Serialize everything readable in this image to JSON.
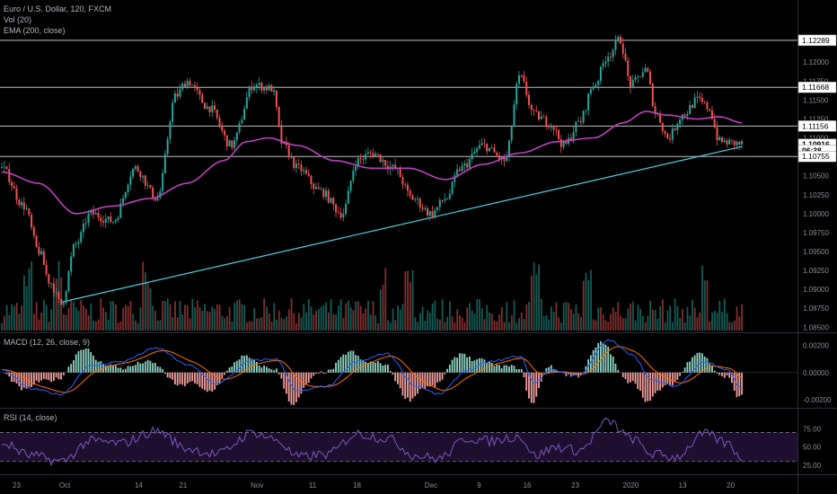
{
  "header": {
    "symbol": "Euro / U.S. Dollar, 120, FXCM",
    "vol": "Vol (20)",
    "ema": "EMA (200, close)",
    "macd": "MACD (12, 26, close, 9)",
    "rsi": "RSI (14, close)"
  },
  "colors": {
    "background": "#000000",
    "up": "#26a69a",
    "down": "#ef5350",
    "ema": "#c040c0",
    "trendline": "#4dd0e1",
    "hline": "#bfbfbf",
    "macd_line": "#2962ff",
    "signal_line": "#ff6d00",
    "rsi_line": "#7e57c2",
    "rsi_band": "#1e0f2e"
  },
  "chart_data": [
    {
      "type": "candlestick",
      "pane": "price",
      "y_ticks": [
        "1.12250",
        "1.12000",
        "1.11750",
        "1.11500",
        "1.11250",
        "1.11000",
        "1.10750",
        "1.10500",
        "1.10250",
        "1.10000",
        "1.09750",
        "1.09500",
        "1.09250",
        "1.09000",
        "1.08750",
        "1.08500"
      ],
      "ylim": [
        1.0848,
        1.1275
      ],
      "x_tick_labels": [
        "23",
        "Oct",
        "14",
        "21",
        "Nov",
        "11",
        "18",
        "Dec",
        "9",
        "16",
        "23",
        "2020",
        "13",
        "20"
      ],
      "price_labels": [
        {
          "text": "1.12289",
          "value": 1.12289,
          "highlight": false
        },
        {
          "text": "1.11668",
          "value": 1.11668,
          "highlight": false
        },
        {
          "text": "1.11156",
          "value": 1.11156,
          "highlight": false
        },
        {
          "text": "1.10916",
          "value": 1.10916,
          "highlight": true
        },
        {
          "text": "06:38",
          "value": 1.10835,
          "highlight": true
        },
        {
          "text": "1.10755",
          "value": 1.10755,
          "highlight": false
        }
      ],
      "horizontal_lines": [
        1.12289,
        1.11668,
        1.11156,
        1.10755
      ],
      "trendline": {
        "from": {
          "bar": 0.08,
          "price": 1.0883
        },
        "to": {
          "bar": 0.97,
          "price": 1.1085
        }
      },
      "close_anchors": [
        [
          0.0,
          1.106
        ],
        [
          0.03,
          1.101
        ],
        [
          0.05,
          1.095
        ],
        [
          0.065,
          1.091
        ],
        [
          0.08,
          1.088
        ],
        [
          0.1,
          1.096
        ],
        [
          0.12,
          1.1
        ],
        [
          0.15,
          1.099
        ],
        [
          0.18,
          1.106
        ],
        [
          0.21,
          1.102
        ],
        [
          0.235,
          1.1155
        ],
        [
          0.25,
          1.1175
        ],
        [
          0.28,
          1.114
        ],
        [
          0.31,
          1.109
        ],
        [
          0.34,
          1.117
        ],
        [
          0.365,
          1.1165
        ],
        [
          0.38,
          1.109
        ],
        [
          0.4,
          1.106
        ],
        [
          0.43,
          1.103
        ],
        [
          0.46,
          1.1
        ],
        [
          0.48,
          1.107
        ],
        [
          0.5,
          1.108
        ],
        [
          0.53,
          1.106
        ],
        [
          0.555,
          1.102
        ],
        [
          0.58,
          1.1
        ],
        [
          0.6,
          1.102
        ],
        [
          0.62,
          1.106
        ],
        [
          0.65,
          1.109
        ],
        [
          0.68,
          1.107
        ],
        [
          0.7,
          1.118
        ],
        [
          0.72,
          1.113
        ],
        [
          0.74,
          1.112
        ],
        [
          0.76,
          1.109
        ],
        [
          0.78,
          1.112
        ],
        [
          0.8,
          1.117
        ],
        [
          0.82,
          1.121
        ],
        [
          0.835,
          1.123
        ],
        [
          0.85,
          1.117
        ],
        [
          0.87,
          1.119
        ],
        [
          0.885,
          1.113
        ],
        [
          0.9,
          1.11
        ],
        [
          0.92,
          1.113
        ],
        [
          0.94,
          1.115
        ],
        [
          0.955,
          1.114
        ],
        [
          0.97,
          1.1095
        ],
        [
          1.0,
          1.1092
        ]
      ],
      "ema_anchors": [
        [
          0.0,
          1.1055
        ],
        [
          0.05,
          1.104
        ],
        [
          0.1,
          1.1
        ],
        [
          0.15,
          1.101
        ],
        [
          0.2,
          1.102
        ],
        [
          0.25,
          1.104
        ],
        [
          0.3,
          1.107
        ],
        [
          0.33,
          1.1095
        ],
        [
          0.36,
          1.11
        ],
        [
          0.4,
          1.109
        ],
        [
          0.45,
          1.107
        ],
        [
          0.5,
          1.106
        ],
        [
          0.55,
          1.106
        ],
        [
          0.6,
          1.1045
        ],
        [
          0.65,
          1.1065
        ],
        [
          0.7,
          1.108
        ],
        [
          0.75,
          1.1095
        ],
        [
          0.8,
          1.11
        ],
        [
          0.84,
          1.112
        ],
        [
          0.87,
          1.1135
        ],
        [
          0.9,
          1.113
        ],
        [
          0.94,
          1.1125
        ],
        [
          0.97,
          1.1128
        ],
        [
          1.0,
          1.112
        ]
      ],
      "volume_spikes": [
        0.035,
        0.075,
        0.195,
        0.515,
        0.55,
        0.72,
        0.79,
        0.95
      ]
    },
    {
      "type": "histogram+line",
      "pane": "macd",
      "ylim": [
        -0.0024,
        0.0027
      ],
      "y_ticks": [
        "0.00200",
        "0.00000",
        "-0.00200"
      ],
      "macd_anchors": [
        [
          0.0,
          0.0002
        ],
        [
          0.04,
          -0.0012
        ],
        [
          0.08,
          -0.0016
        ],
        [
          0.12,
          0.0005
        ],
        [
          0.16,
          0.0008
        ],
        [
          0.21,
          0.0018
        ],
        [
          0.25,
          0.0006
        ],
        [
          0.29,
          -0.0008
        ],
        [
          0.34,
          0.0009
        ],
        [
          0.37,
          0.001
        ],
        [
          0.4,
          -0.0014
        ],
        [
          0.44,
          -0.001
        ],
        [
          0.48,
          0.0008
        ],
        [
          0.52,
          0.0014
        ],
        [
          0.56,
          -0.001
        ],
        [
          0.59,
          -0.0016
        ],
        [
          0.63,
          0.0002
        ],
        [
          0.66,
          0.0008
        ],
        [
          0.7,
          0.0012
        ],
        [
          0.72,
          -0.0008
        ],
        [
          0.74,
          0.0002
        ],
        [
          0.78,
          -0.0002
        ],
        [
          0.82,
          0.0024
        ],
        [
          0.85,
          0.0014
        ],
        [
          0.88,
          -0.0006
        ],
        [
          0.91,
          -0.001
        ],
        [
          0.95,
          0.0008
        ],
        [
          0.98,
          0.0002
        ],
        [
          1.0,
          -0.0012
        ]
      ]
    },
    {
      "type": "line",
      "pane": "rsi",
      "ylim": [
        15,
        100
      ],
      "y_ticks": [
        "75.00",
        "50.00",
        "25.00"
      ],
      "band": [
        30,
        70
      ],
      "rsi_anchors": [
        [
          0.0,
          55
        ],
        [
          0.04,
          38
        ],
        [
          0.08,
          30
        ],
        [
          0.12,
          58
        ],
        [
          0.16,
          55
        ],
        [
          0.21,
          72
        ],
        [
          0.25,
          48
        ],
        [
          0.29,
          40
        ],
        [
          0.34,
          70
        ],
        [
          0.37,
          60
        ],
        [
          0.4,
          36
        ],
        [
          0.44,
          40
        ],
        [
          0.48,
          68
        ],
        [
          0.52,
          62
        ],
        [
          0.56,
          38
        ],
        [
          0.59,
          34
        ],
        [
          0.63,
          62
        ],
        [
          0.66,
          58
        ],
        [
          0.7,
          65
        ],
        [
          0.72,
          38
        ],
        [
          0.75,
          50
        ],
        [
          0.78,
          45
        ],
        [
          0.82,
          85
        ],
        [
          0.85,
          62
        ],
        [
          0.88,
          40
        ],
        [
          0.91,
          36
        ],
        [
          0.95,
          68
        ],
        [
          0.98,
          55
        ],
        [
          1.0,
          36
        ]
      ]
    }
  ]
}
